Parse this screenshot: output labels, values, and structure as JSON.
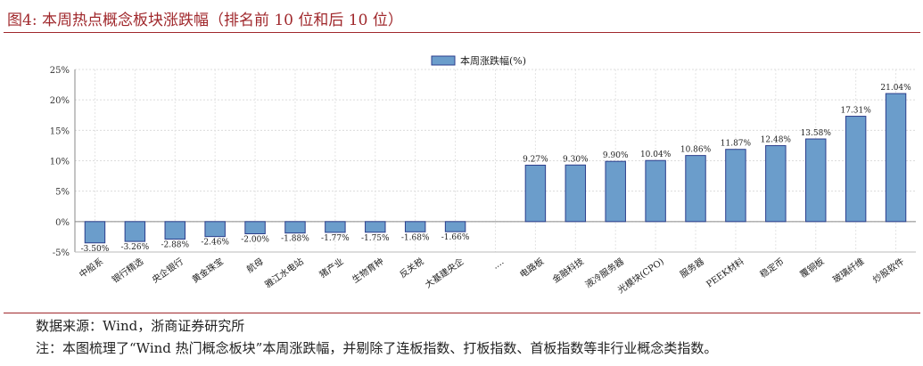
{
  "figure": {
    "title": "图4:   本周热点概念板块涨跌幅（排名前 10 位和后 10 位）",
    "source": "数据来源：Wind，浙商证券研究所",
    "note": "注：本图梳理了“Wind 热门概念板块”本周涨跌幅，并剔除了连板指数、打板指数、首板指数等非行业概念类指数。"
  },
  "chart_data": {
    "type": "bar",
    "title": "",
    "xlabel": "",
    "ylabel": "",
    "ylim": [
      -5,
      25
    ],
    "yticks": [
      -5,
      0,
      5,
      10,
      15,
      20,
      25
    ],
    "ytick_labels": [
      "-5%",
      "0%",
      "5%",
      "10%",
      "15%",
      "20%",
      "25%"
    ],
    "grid": true,
    "legend_position": "top-center",
    "bar_color": "#6b9dcb",
    "bar_edge_color": "#2c3e8c",
    "categories": [
      "中船系",
      "银行精选",
      "央企银行",
      "黄金珠宝",
      "航母",
      "雅江水电站",
      "猪产业",
      "生物育种",
      "反关税",
      "大基建央企",
      "....",
      "电路板",
      "金融科技",
      "液冷服务器",
      "光模块(CPO)",
      "服务器",
      "PEEK材料",
      "稳定币",
      "覆铜板",
      "玻璃纤维",
      "炒股软件"
    ],
    "series": [
      {
        "name": "本周涨跌幅(%)",
        "values": [
          -3.5,
          -3.26,
          -2.88,
          -2.46,
          -2.0,
          -1.88,
          -1.77,
          -1.75,
          -1.68,
          -1.66,
          null,
          9.27,
          9.3,
          9.9,
          10.04,
          10.86,
          11.87,
          12.48,
          13.58,
          17.31,
          21.04
        ],
        "labels": [
          "-3.50%",
          "-3.26%",
          "-2.88%",
          "-2.46%",
          "-2.00%",
          "-1.88%",
          "-1.77%",
          "-1.75%",
          "-1.68%",
          "-1.66%",
          "",
          "9.27%",
          "9.30%",
          "9.90%",
          "10.04%",
          "10.86%",
          "11.87%",
          "12.48%",
          "13.58%",
          "17.31%",
          "21.04%"
        ]
      }
    ]
  }
}
